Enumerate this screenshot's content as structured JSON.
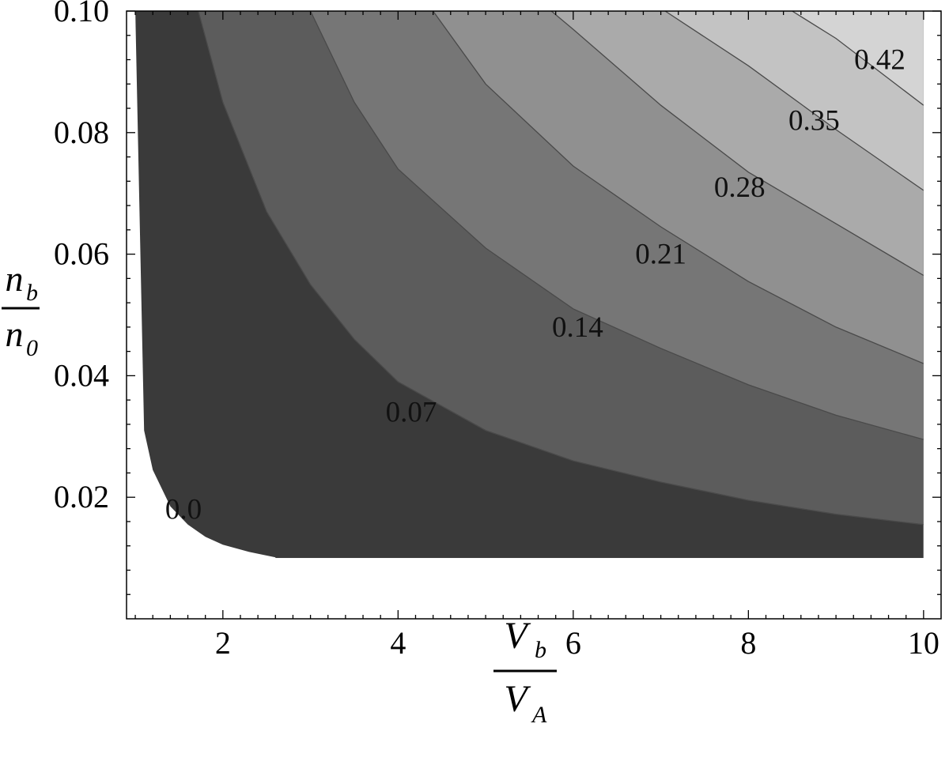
{
  "chart_data": {
    "type": "contour",
    "title": "",
    "x_range": [
      1,
      10
    ],
    "y_range": [
      0.01,
      0.1
    ],
    "xlim": [
      0.9,
      10.2
    ],
    "ylim": [
      0.0,
      0.1
    ],
    "grid": false,
    "legend": "none",
    "x_ticks": [
      2,
      4,
      6,
      8,
      10
    ],
    "x_tick_labels": [
      "2",
      "4",
      "6",
      "8",
      "10"
    ],
    "y_ticks": [
      0.02,
      0.04,
      0.06,
      0.08,
      0.1
    ],
    "y_tick_labels": [
      "0.02",
      "0.04",
      "0.06",
      "0.08",
      "0.10"
    ],
    "xlabel": {
      "numerator": "V",
      "numerator_sub": "b",
      "denominator": "V",
      "denominator_sub": "A"
    },
    "ylabel": {
      "numerator": "n",
      "numerator_sub": "b",
      "denominator": "n",
      "denominator_sub": "0"
    },
    "levels": [
      0.0,
      0.07,
      0.14,
      0.21,
      0.28,
      0.35,
      0.42
    ],
    "level_labels": [
      "0.0",
      "0.07",
      "0.14",
      "0.21",
      "0.28",
      "0.35",
      "0.42"
    ],
    "contour_label_positions": [
      {
        "label": "0.0",
        "x": 1.55,
        "y": 0.018
      },
      {
        "label": "0.07",
        "x": 4.15,
        "y": 0.034
      },
      {
        "label": "0.14",
        "x": 6.05,
        "y": 0.048
      },
      {
        "label": "0.21",
        "x": 7.0,
        "y": 0.06
      },
      {
        "label": "0.28",
        "x": 7.9,
        "y": 0.071
      },
      {
        "label": "0.35",
        "x": 8.75,
        "y": 0.082
      },
      {
        "label": "0.42",
        "x": 9.5,
        "y": 0.092
      }
    ],
    "contour_lines": [
      {
        "level": 0.0,
        "points": [
          [
            1.1,
            0.031
          ],
          [
            1.2,
            0.0245
          ],
          [
            1.4,
            0.0185
          ],
          [
            1.6,
            0.0155
          ],
          [
            1.8,
            0.0135
          ],
          [
            2.0,
            0.0122
          ],
          [
            2.3,
            0.011
          ],
          [
            2.6,
            0.0101
          ]
        ]
      },
      {
        "level": 0.07,
        "points": [
          [
            1.72,
            0.1
          ],
          [
            2.0,
            0.085
          ],
          [
            2.5,
            0.067
          ],
          [
            3.0,
            0.055
          ],
          [
            3.5,
            0.046
          ],
          [
            4.0,
            0.039
          ],
          [
            5.0,
            0.031
          ],
          [
            6.0,
            0.026
          ],
          [
            7.0,
            0.0225
          ],
          [
            8.0,
            0.0195
          ],
          [
            9.0,
            0.0172
          ],
          [
            10.0,
            0.0155
          ]
        ]
      },
      {
        "level": 0.14,
        "points": [
          [
            3.0,
            0.1
          ],
          [
            3.5,
            0.085
          ],
          [
            4.0,
            0.074
          ],
          [
            5.0,
            0.061
          ],
          [
            6.0,
            0.051
          ],
          [
            7.0,
            0.0445
          ],
          [
            8.0,
            0.0385
          ],
          [
            9.0,
            0.0335
          ],
          [
            10.0,
            0.0295
          ]
        ]
      },
      {
        "level": 0.21,
        "points": [
          [
            4.4,
            0.1
          ],
          [
            5.0,
            0.088
          ],
          [
            6.0,
            0.0745
          ],
          [
            7.0,
            0.0645
          ],
          [
            8.0,
            0.0555
          ],
          [
            9.0,
            0.048
          ],
          [
            10.0,
            0.042
          ]
        ]
      },
      {
        "level": 0.28,
        "points": [
          [
            5.75,
            0.1
          ],
          [
            6.0,
            0.097
          ],
          [
            7.0,
            0.0845
          ],
          [
            8.0,
            0.0735
          ],
          [
            9.0,
            0.065
          ],
          [
            10.0,
            0.0565
          ]
        ]
      },
      {
        "level": 0.35,
        "points": [
          [
            7.05,
            0.1
          ],
          [
            8.0,
            0.091
          ],
          [
            9.0,
            0.0805
          ],
          [
            10.0,
            0.0705
          ]
        ]
      },
      {
        "level": 0.42,
        "points": [
          [
            8.5,
            0.1
          ],
          [
            9.0,
            0.0955
          ],
          [
            10.0,
            0.0845
          ]
        ]
      }
    ]
  },
  "colors": {
    "background": "#ffffff",
    "band_fills": [
      "#3a3a3a",
      "#5c5c5c",
      "#767676",
      "#909090",
      "#aaaaaa",
      "#c3c3c3",
      "#d4d4d4"
    ],
    "contour_line": "#4a4a4a",
    "frame": "#000000"
  }
}
